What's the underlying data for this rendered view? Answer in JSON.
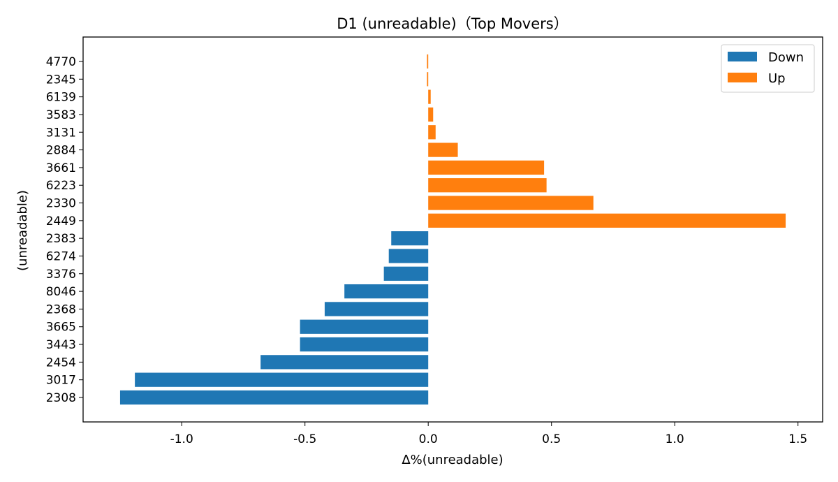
{
  "chart_data": {
    "type": "bar",
    "orientation": "horizontal",
    "title": "D1 (unreadable)（Top Movers）",
    "xlabel": "Δ%(unreadable)",
    "ylabel": "(unreadable)",
    "xlim": [
      -1.4,
      1.6
    ],
    "xticks": [
      -1.0,
      -0.5,
      0.0,
      0.5,
      1.0,
      1.5
    ],
    "xtick_labels": [
      "-1.0",
      "-0.5",
      "0.0",
      "0.5",
      "1.0",
      "1.5"
    ],
    "grid": false,
    "legend_position": "top-right",
    "categories": [
      "2308",
      "3017",
      "2454",
      "3443",
      "3665",
      "2368",
      "8046",
      "3376",
      "6274",
      "2383",
      "2449",
      "2330",
      "6223",
      "3661",
      "2884",
      "3131",
      "3583",
      "6139",
      "2345",
      "4770"
    ],
    "values": [
      -1.25,
      -1.19,
      -0.68,
      -0.52,
      -0.52,
      -0.42,
      -0.34,
      -0.18,
      -0.16,
      -0.15,
      1.45,
      0.67,
      0.48,
      0.47,
      0.12,
      0.03,
      0.02,
      0.01,
      -0.005,
      -0.005
    ],
    "series": [
      {
        "name": "Down",
        "color": "#1f77b4"
      },
      {
        "name": "Up",
        "color": "#ff7f0e"
      }
    ],
    "bar_series": [
      "Down",
      "Down",
      "Down",
      "Down",
      "Down",
      "Down",
      "Down",
      "Down",
      "Down",
      "Down",
      "Up",
      "Up",
      "Up",
      "Up",
      "Up",
      "Up",
      "Up",
      "Up",
      "Up",
      "Up"
    ]
  }
}
